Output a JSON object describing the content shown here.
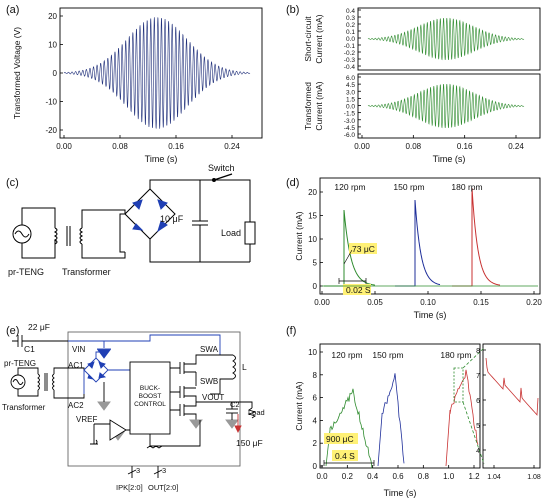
{
  "panels": {
    "a": {
      "letter": "(a)",
      "ylabel": "Transformed Voltage (V)",
      "xlabel": "Time (s)",
      "yticks": [
        "20",
        "10",
        "0",
        "-10",
        "-20"
      ],
      "xticks": [
        "0.00",
        "0.08",
        "0.16",
        "0.24"
      ],
      "color": "#1f2f7a"
    },
    "b": {
      "letter": "(b)",
      "top_ylabel_line1": "Short-circuit",
      "top_ylabel_line2": "Current (mA)",
      "top_yticks": [
        "0.4",
        "0.3",
        "0.2",
        "0.1",
        "0.0",
        "-0.1",
        "-0.2",
        "-0.3",
        "-0.4"
      ],
      "bottom_ylabel_line1": "Transformed",
      "bottom_ylabel_line2": "Current (mA)",
      "bottom_yticks": [
        "6.0",
        "4.5",
        "3.0",
        "1.5",
        "0.0",
        "-1.5",
        "-3.0",
        "-4.5",
        "-6.0"
      ],
      "xlabel": "Time (s)",
      "xticks": [
        "0.00",
        "0.08",
        "0.16",
        "0.24"
      ],
      "color": "#2e8b2e"
    },
    "c": {
      "letter": "(c)",
      "source_label": "pr-TENG",
      "transformer_label": "Transformer",
      "cap_label": "10 μF",
      "switch_label": "Switch",
      "load_label": "Load"
    },
    "d": {
      "letter": "(d)",
      "ylabel": "Current (mA)",
      "xlabel": "Time (s)",
      "yticks": [
        "20",
        "15",
        "10",
        "5",
        "0"
      ],
      "xticks": [
        "0.00",
        "0.05",
        "0.10",
        "0.15",
        "0.20"
      ],
      "rpm_labels": [
        "120 rpm",
        "150 rpm",
        "180 rpm"
      ],
      "charge_annotation": "73 μC",
      "time_annotation": "0.02 S",
      "colors": [
        "#2e8b2e",
        "#1f2f9a",
        "#c83232"
      ],
      "highlight": "#fff176"
    },
    "e": {
      "letter": "(e)",
      "c1_value": "22 μF",
      "c1_label": "C1",
      "vin_label": "VIN",
      "source_label": "pr-TENG",
      "transformer_label": "Transformer",
      "ac1_label": "AC1",
      "ac2_label": "AC2",
      "block_line1": "BUCK-",
      "block_line2": "BOOST",
      "block_line3": "CONTROL",
      "swa_label": "SWA",
      "swb_label": "SWB",
      "l_label": "L",
      "vout_label": "VOUT",
      "c2_label": "C2",
      "load_label": "Load",
      "c2_value": "150 μF",
      "vref_label": "VREF",
      "ipk_label": "IPK[2:0]",
      "out_label": "OUT[2:0]",
      "bus_width_1": "3",
      "bus_width_2": "3",
      "accent": "#1f3fb4"
    },
    "f": {
      "letter": "(f)",
      "ylabel": "Current (mA)",
      "xlabel": "Time (s)",
      "yticks": [
        "10",
        "8",
        "6",
        "4",
        "2",
        "0"
      ],
      "xticks": [
        "0.0",
        "0.2",
        "0.4",
        "0.6",
        "0.8",
        "1.0",
        "1.2"
      ],
      "rpm_labels": [
        "120 rpm",
        "150 rpm",
        "180 rpm"
      ],
      "charge_annotation": "900 μC",
      "time_annotation": "0.4 S",
      "inset_yticks": [
        "8",
        "7",
        "6",
        "5",
        "4"
      ],
      "inset_xticks": [
        "1.04",
        "1.08"
      ],
      "colors": [
        "#2e8b2e",
        "#1f2f9a",
        "#c83232"
      ],
      "highlight": "#fff176"
    }
  }
}
